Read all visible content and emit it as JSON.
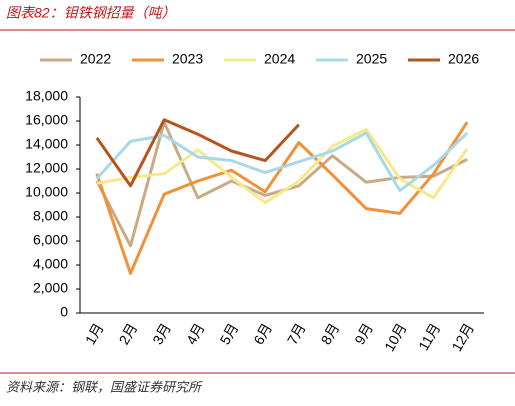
{
  "chart_data": {
    "type": "line",
    "title": "图表82：钼铁钢招量（吨）",
    "source": "资料来源：钢联，国盛证券研究所",
    "categories": [
      "1月",
      "2月",
      "3月",
      "4月",
      "5月",
      "6月",
      "7月",
      "8月",
      "9月",
      "10月",
      "11月",
      "12月"
    ],
    "series": [
      {
        "name": "2022",
        "color": "#c9aa84",
        "values": [
          11000,
          5600,
          15900,
          9600,
          11000,
          9800,
          10600,
          13100,
          10900,
          11300,
          11400,
          12800
        ]
      },
      {
        "name": "2023",
        "color": "#f0913a",
        "values": [
          11600,
          3300,
          9900,
          11000,
          11900,
          10100,
          14200,
          11500,
          8700,
          8300,
          11600,
          15900
        ]
      },
      {
        "name": "2024",
        "color": "#f5e98a",
        "values": [
          10800,
          11300,
          11600,
          13600,
          11300,
          9200,
          11000,
          13900,
          15300,
          11200,
          9600,
          13700
        ]
      },
      {
        "name": "2025",
        "color": "#a9d8e8",
        "values": [
          11200,
          14300,
          14800,
          13000,
          12700,
          11700,
          12600,
          13500,
          15000,
          10200,
          12300,
          15000
        ]
      },
      {
        "name": "2026",
        "color": "#b5541c",
        "values": [
          14600,
          10600,
          16100,
          14900,
          13500,
          12700,
          15700,
          null,
          null,
          null,
          null,
          null
        ]
      }
    ],
    "ylim": [
      0,
      18000
    ],
    "yticks": [
      {
        "value": 0,
        "label": "0"
      },
      {
        "value": 2000,
        "label": "2,000"
      },
      {
        "value": 4000,
        "label": "4,000"
      },
      {
        "value": 6000,
        "label": "6,000"
      },
      {
        "value": 8000,
        "label": "8,000"
      },
      {
        "value": 10000,
        "label": "10,000"
      },
      {
        "value": 12000,
        "label": "12,000"
      },
      {
        "value": 14000,
        "label": "14,000"
      },
      {
        "value": 16000,
        "label": "16,000"
      },
      {
        "value": 18000,
        "label": "18,000"
      }
    ]
  }
}
